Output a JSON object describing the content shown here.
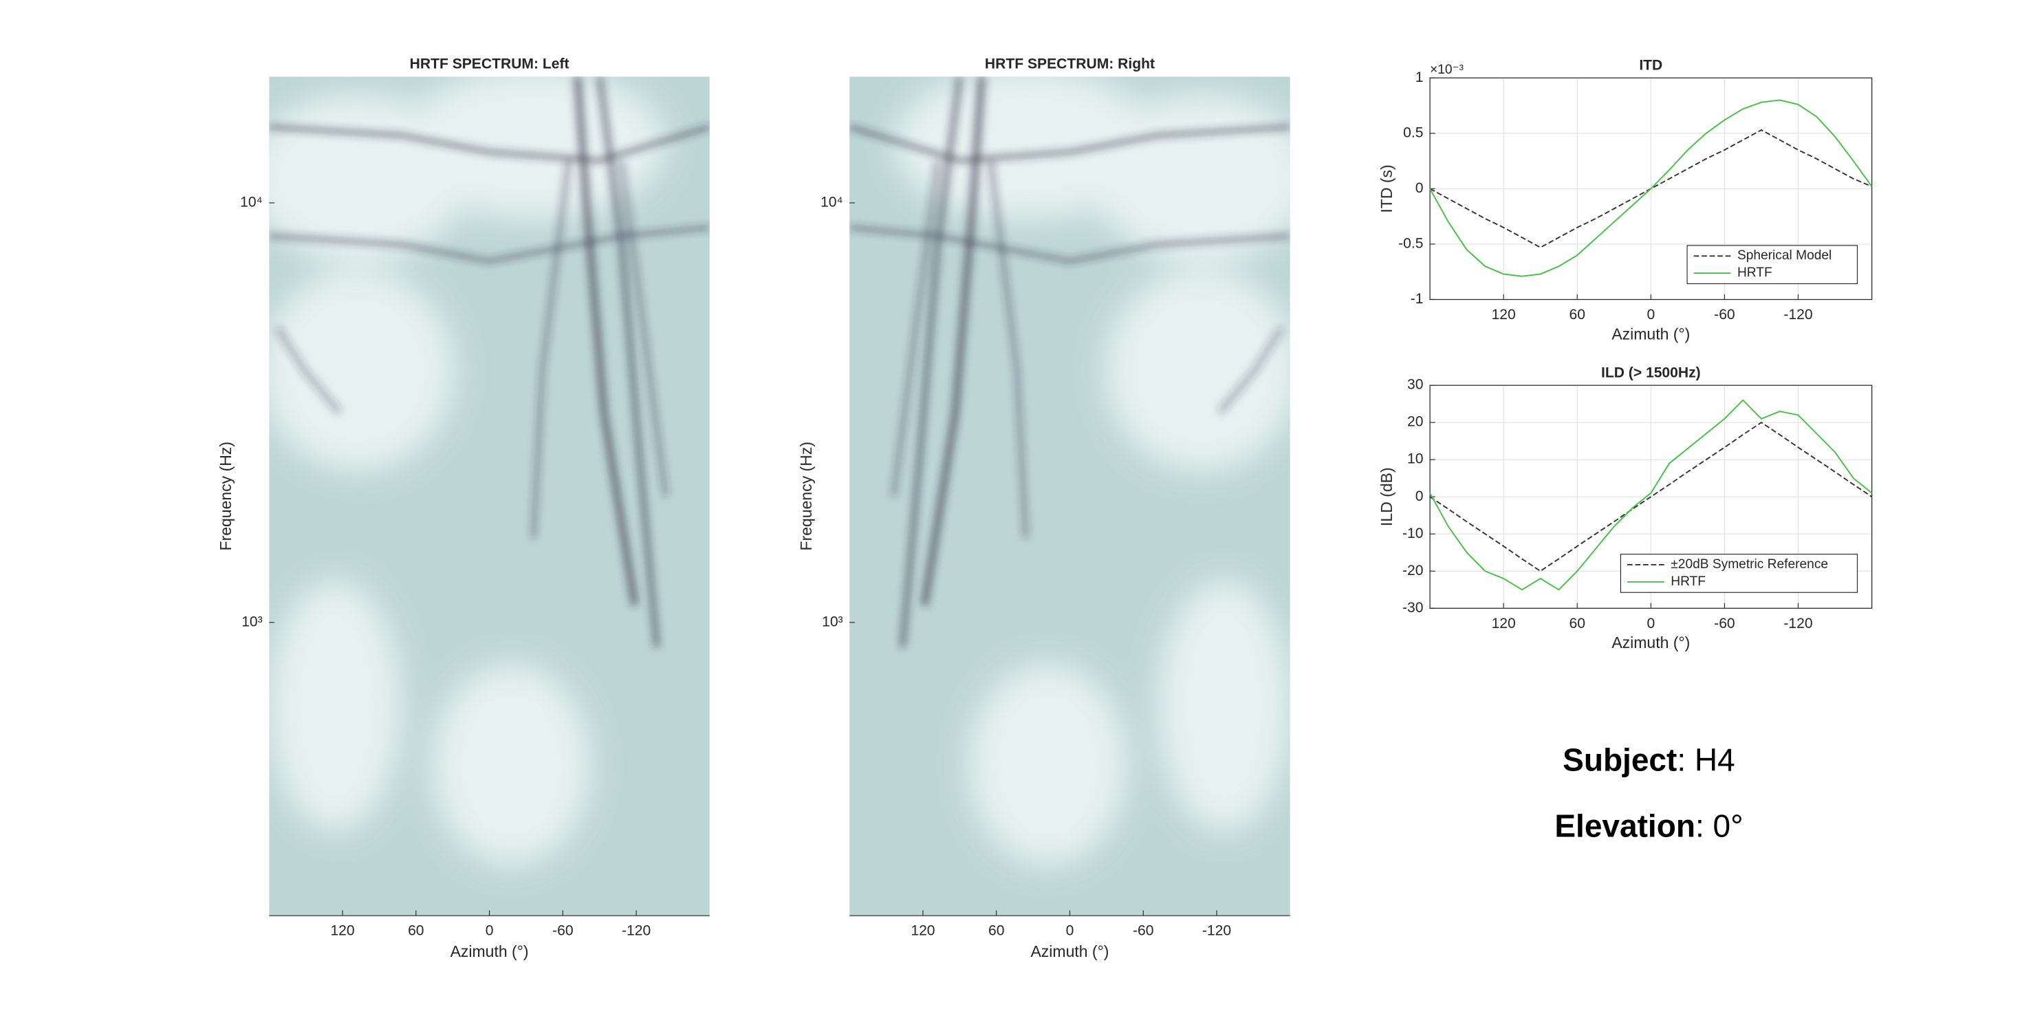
{
  "chart_data": [
    {
      "type": "heatmap",
      "title": "HRTF SPECTRUM: Left",
      "xlabel": "Azimuth (°)",
      "ylabel": "Frequency (Hz)",
      "xlim": [
        180,
        -180
      ],
      "xticks": [
        120,
        60,
        0,
        -60,
        -120
      ],
      "ylim": [
        200,
        20000
      ],
      "yscale": "log",
      "yticks": [
        {
          "value": 1000,
          "label": "10³"
        },
        {
          "value": 10000,
          "label": "10⁴"
        }
      ],
      "colors": [
        "#bdd6d5",
        "#eef6f5",
        "#2e2945"
      ],
      "side": "left"
    },
    {
      "type": "heatmap",
      "title": "HRTF SPECTRUM: Right",
      "xlabel": "Azimuth (°)",
      "ylabel": "Frequency (Hz)",
      "xlim": [
        180,
        -180
      ],
      "xticks": [
        120,
        60,
        0,
        -60,
        -120
      ],
      "ylim": [
        200,
        20000
      ],
      "yscale": "log",
      "yticks": [
        {
          "value": 1000,
          "label": "10³"
        },
        {
          "value": 10000,
          "label": "10⁴"
        }
      ],
      "colors": [
        "#bdd6d5",
        "#eef6f5",
        "#2e2945"
      ],
      "side": "right"
    },
    {
      "type": "line",
      "title": "ITD",
      "xlabel": "Azimuth (°)",
      "ylabel": "ITD (s)",
      "y_exponent": "×10⁻³",
      "xlim": [
        180,
        -180
      ],
      "xticks": [
        120,
        60,
        0,
        -60,
        -120
      ],
      "ylim": [
        -1,
        1
      ],
      "yticks": [
        -1,
        -0.5,
        0,
        0.5,
        1
      ],
      "grid": true,
      "legend": "southeast",
      "x": [
        180,
        165,
        150,
        135,
        120,
        105,
        90,
        75,
        60,
        45,
        30,
        15,
        0,
        -15,
        -30,
        -45,
        -60,
        -75,
        -90,
        -105,
        -120,
        -135,
        -150,
        -165,
        -180
      ],
      "series": [
        {
          "name": "Spherical Model",
          "color": "#333333",
          "dash": true,
          "values": [
            0,
            -0.09,
            -0.18,
            -0.27,
            -0.35,
            -0.44,
            -0.53,
            -0.44,
            -0.35,
            -0.27,
            -0.18,
            -0.09,
            0,
            0.09,
            0.18,
            0.27,
            0.35,
            0.44,
            0.53,
            0.44,
            0.35,
            0.27,
            0.18,
            0.09,
            0.02
          ]
        },
        {
          "name": "HRTF",
          "color": "#46c046",
          "dash": false,
          "values": [
            0,
            -0.3,
            -0.55,
            -0.7,
            -0.77,
            -0.79,
            -0.77,
            -0.7,
            -0.6,
            -0.45,
            -0.3,
            -0.15,
            0,
            0.17,
            0.35,
            0.5,
            0.62,
            0.72,
            0.78,
            0.8,
            0.76,
            0.65,
            0.47,
            0.25,
            0.02
          ]
        }
      ]
    },
    {
      "type": "line",
      "title": "ILD (> 1500Hz)",
      "xlabel": "Azimuth (°)",
      "ylabel": "ILD (dB)",
      "xlim": [
        180,
        -180
      ],
      "xticks": [
        120,
        60,
        0,
        -60,
        -120
      ],
      "ylim": [
        -30,
        30
      ],
      "yticks": [
        -30,
        -20,
        -10,
        0,
        10,
        20,
        30
      ],
      "grid": true,
      "legend": "southeast",
      "x": [
        180,
        165,
        150,
        135,
        120,
        105,
        90,
        75,
        60,
        45,
        30,
        15,
        0,
        -15,
        -30,
        -45,
        -60,
        -75,
        -90,
        -105,
        -120,
        -135,
        -150,
        -165,
        -180
      ],
      "series": [
        {
          "name": "±20dB Symetric Reference",
          "color": "#333333",
          "dash": true,
          "values": [
            0,
            -3.3,
            -6.7,
            -10,
            -13.3,
            -16.7,
            -20,
            -16.7,
            -13.3,
            -10,
            -6.7,
            -3.3,
            0,
            3.3,
            6.7,
            10,
            13.3,
            16.7,
            20,
            16.7,
            13.3,
            10,
            6.7,
            3.3,
            0
          ]
        },
        {
          "name": "HRTF",
          "color": "#46c046",
          "dash": false,
          "values": [
            1,
            -8,
            -15,
            -20,
            -22,
            -25,
            -22,
            -25,
            -20,
            -14,
            -8,
            -3,
            1,
            9,
            13,
            17,
            21,
            26,
            21,
            23,
            22,
            17,
            12,
            5,
            1
          ]
        }
      ]
    }
  ],
  "info": [
    {
      "label": "Subject",
      "value": ": H4"
    },
    {
      "label": "Elevation",
      "value": ": 0°"
    }
  ]
}
